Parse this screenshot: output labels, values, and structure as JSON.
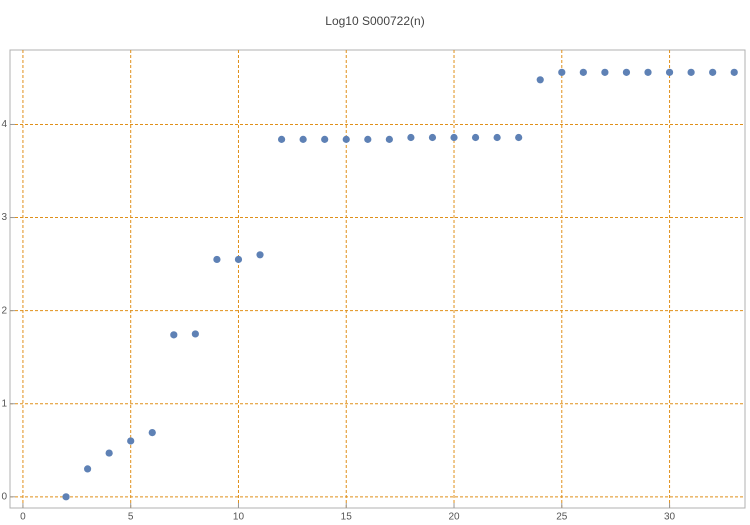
{
  "chart_data": {
    "type": "scatter",
    "title": "Log10 S000722(n)",
    "series": [
      {
        "color": "#5e81b5",
        "x": [
          2,
          3,
          4,
          5,
          6,
          7,
          8,
          9,
          10,
          11,
          12,
          13,
          14,
          15,
          16,
          17,
          18,
          19,
          20,
          21,
          22,
          23,
          24,
          25,
          26,
          27,
          28,
          29,
          30,
          31,
          32,
          33
        ],
        "values": [
          0,
          0.3,
          0.47,
          0.6,
          0.69,
          1.74,
          1.75,
          2.55,
          2.55,
          2.6,
          3.84,
          3.84,
          3.84,
          3.84,
          3.84,
          3.84,
          3.86,
          3.86,
          3.86,
          3.86,
          3.86,
          3.86,
          4.48,
          4.56,
          4.56,
          4.56,
          4.56,
          4.56,
          4.56,
          4.56,
          4.56,
          4.56
        ]
      }
    ],
    "xlim": [
      -0.6,
      33.5
    ],
    "ylim": [
      -0.12,
      4.8
    ],
    "xticks": [
      0,
      5,
      10,
      15,
      20,
      25,
      30
    ],
    "yticks": [
      0,
      1,
      2,
      3,
      4
    ],
    "grid": true,
    "grid_color": "#e0901a"
  }
}
